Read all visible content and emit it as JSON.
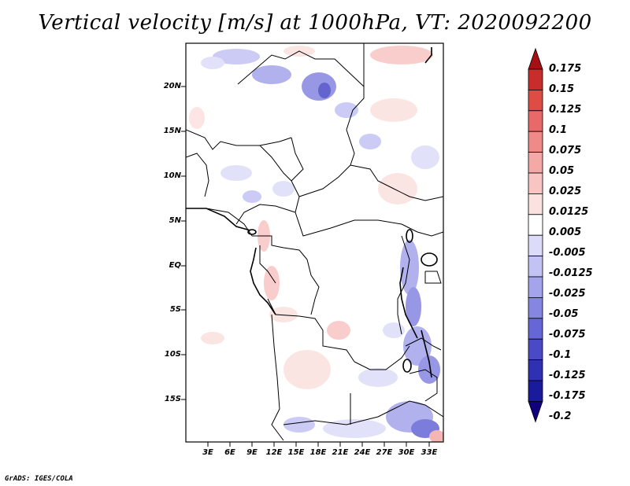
{
  "title": "Vertical velocity [m/s] at 1000hPa, VT: 2020092200",
  "credit": "GrADS: IGES/COLA",
  "map": {
    "lat_labels": [
      "20N",
      "15N",
      "10N",
      "5N",
      "EQ",
      "5S",
      "10S",
      "15S"
    ],
    "lon_labels": [
      "3E",
      "6E",
      "9E",
      "12E",
      "15E",
      "18E",
      "21E",
      "24E",
      "27E",
      "30E",
      "33E"
    ]
  },
  "colorbar": {
    "labels": [
      "0.175",
      "0.15",
      "0.125",
      "0.1",
      "0.075",
      "0.05",
      "0.025",
      "0.0125",
      "0.005",
      "-0.005",
      "-0.0125",
      "-0.025",
      "-0.05",
      "-0.075",
      "-0.1",
      "-0.125",
      "-0.175",
      "-0.2"
    ],
    "colors": [
      "#a50f15",
      "#c92d2b",
      "#de4c44",
      "#e9686a",
      "#ef8a89",
      "#f4a9a6",
      "#f9c5c3",
      "#fbe1df",
      "#ffffff",
      "#dcdcfa",
      "#c2c2f4",
      "#a4a4ec",
      "#8585e2",
      "#6666d6",
      "#4a4ac6",
      "#3030b4",
      "#1a1a9c",
      "#100080"
    ]
  }
}
